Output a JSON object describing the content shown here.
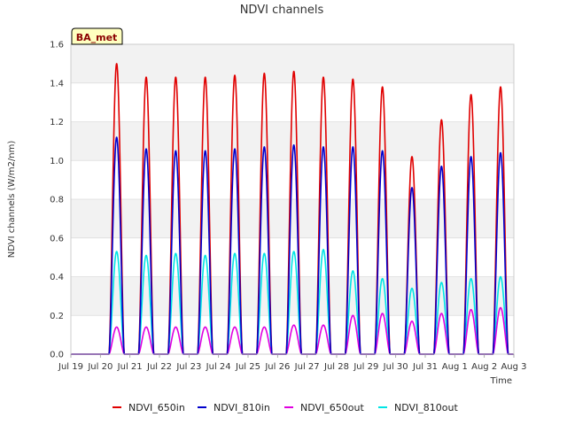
{
  "chart_data": {
    "type": "line",
    "title": "NDVI channels",
    "xlabel": "Time",
    "ylabel": "NDVI channels (W/m2/nm)",
    "ylim": [
      0.0,
      1.6
    ],
    "yticks": [
      "0.0",
      "0.2",
      "0.4",
      "0.6",
      "0.8",
      "1.0",
      "1.2",
      "1.4",
      "1.6"
    ],
    "xlim": [
      0,
      15
    ],
    "xticks": [
      "Jul 19",
      "Jul 20",
      "Jul 21",
      "Jul 22",
      "Jul 23",
      "Jul 24",
      "Jul 25",
      "Jul 26",
      "Jul 27",
      "Jul 28",
      "Jul 29",
      "Jul 30",
      "Jul 31",
      "Aug 1",
      "Aug 2",
      "Aug 3"
    ],
    "badge": "BA_met",
    "legend_position": "bottom",
    "daily_peaks": {
      "days": [
        "Jul 20",
        "Jul 21",
        "Jul 22",
        "Jul 23",
        "Jul 24",
        "Jul 25",
        "Jul 26",
        "Jul 27",
        "Jul 28",
        "Jul 29",
        "Jul 30",
        "Jul 31",
        "Aug 1",
        "Aug 2"
      ]
    },
    "series": [
      {
        "name": "NDVI_650in",
        "color": "#e00000",
        "peaks": [
          1.5,
          1.43,
          1.43,
          1.43,
          1.44,
          1.45,
          1.46,
          1.43,
          1.42,
          1.38,
          1.02,
          1.21,
          1.34,
          1.38
        ]
      },
      {
        "name": "NDVI_810in",
        "color": "#0000cc",
        "peaks": [
          1.12,
          1.06,
          1.05,
          1.05,
          1.06,
          1.07,
          1.08,
          1.07,
          1.07,
          1.05,
          0.86,
          0.97,
          1.02,
          1.04
        ]
      },
      {
        "name": "NDVI_650out",
        "color": "#e000e0",
        "peaks": [
          0.14,
          0.14,
          0.14,
          0.14,
          0.14,
          0.14,
          0.15,
          0.15,
          0.2,
          0.21,
          0.17,
          0.21,
          0.23,
          0.24
        ]
      },
      {
        "name": "NDVI_810out",
        "color": "#00e5e5",
        "peaks": [
          0.53,
          0.51,
          0.52,
          0.51,
          0.52,
          0.52,
          0.53,
          0.54,
          0.43,
          0.39,
          0.34,
          0.37,
          0.39,
          0.4
        ]
      }
    ]
  }
}
